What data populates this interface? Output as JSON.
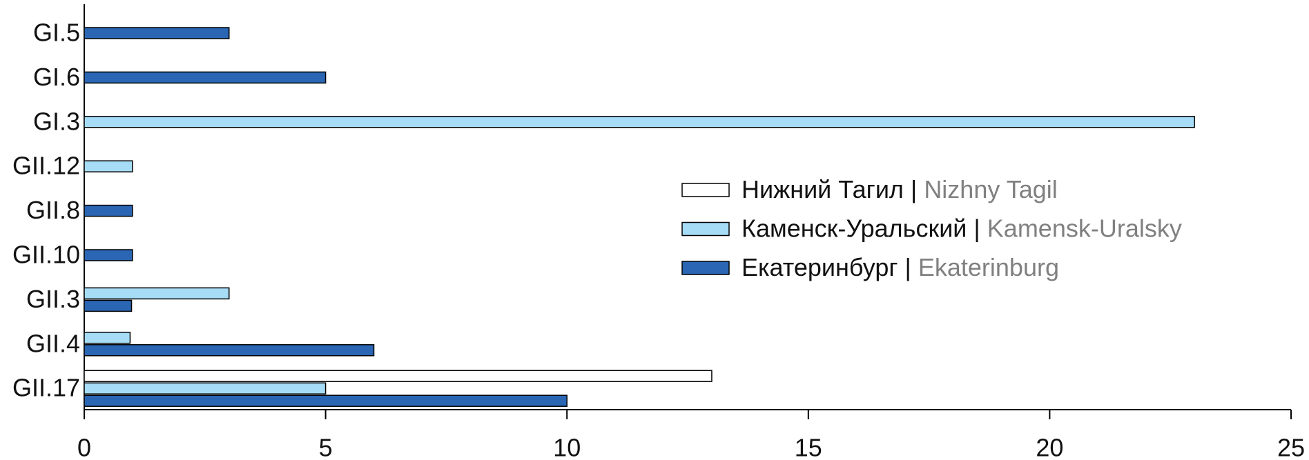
{
  "chart_data": {
    "type": "bar",
    "orientation": "horizontal",
    "categories": [
      "GI.5",
      "GI.6",
      "GI.3",
      "GII.12",
      "GII.8",
      "GII.10",
      "GII.3",
      "GII.4",
      "GII.17"
    ],
    "series": [
      {
        "name": {
          "ru": "Нижний Тагил |",
          "en": "Nizhny Tagil"
        },
        "color": "#ffffff",
        "values": [
          null,
          null,
          null,
          null,
          null,
          null,
          null,
          null,
          13
        ]
      },
      {
        "name": {
          "ru": "Каменск-Уральский |",
          "en": "Kamensk-Uralsky"
        },
        "color": "#a6dcf5",
        "values": [
          null,
          null,
          23,
          1,
          null,
          null,
          3,
          0.95,
          5
        ]
      },
      {
        "name": {
          "ru": "Екатеринбург |",
          "en": "Ekaterinburg"
        },
        "color": "#2a66b3",
        "values": [
          3,
          5,
          null,
          null,
          1,
          1,
          0.98,
          6,
          10
        ]
      }
    ],
    "xlim": [
      0,
      25
    ],
    "xticks": [
      0,
      5,
      10,
      15,
      20,
      25
    ]
  }
}
